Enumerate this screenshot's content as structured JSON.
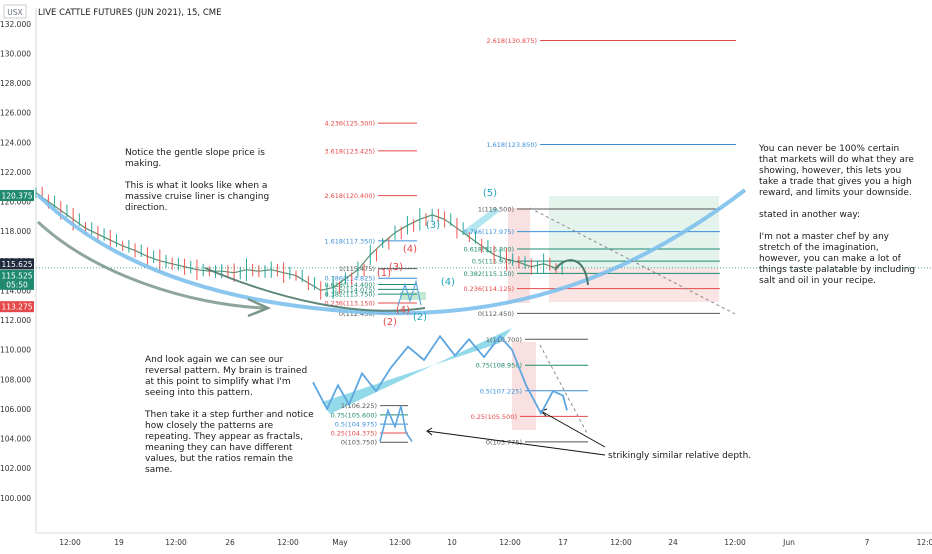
{
  "header": {
    "currency": "USX",
    "title": "LIVE CATTLE FUTURES (JUN 2021), 15, CME"
  },
  "chart_data": {
    "type": "line",
    "title": "LIVE CATTLE FUTURES (JUN 2021), 15, CME",
    "ylim": [
      98.5,
      132.8
    ],
    "y_ticks": [
      "132.000",
      "130.000",
      "128.000",
      "126.000",
      "124.000",
      "122.000",
      "120.000",
      "118.000",
      "116.000",
      "114.000",
      "112.000",
      "110.000",
      "108.000",
      "106.000",
      "104.000",
      "102.000",
      "100.000"
    ],
    "x_ticks": [
      "12:00",
      "19",
      "12:00",
      "26",
      "12:00",
      "May",
      "12:00",
      "10",
      "12:00",
      "17",
      "12:00",
      "24",
      "12:00",
      "Jun",
      "7",
      "12:0"
    ],
    "price_labels": [
      {
        "text": "120.375",
        "value": 120.375,
        "color": "#1f8a70"
      },
      {
        "text": "115.625",
        "value": 115.625,
        "color": "#1f2a3c"
      },
      {
        "text": "115.525",
        "value": 115.525,
        "color": "#1f8a70"
      },
      {
        "text": "05:50",
        "value": 115.525,
        "color": "#1f8a70"
      },
      {
        "text": "113.275",
        "value": 113.275,
        "color": "#e54848"
      }
    ],
    "price_series": [
      120.6,
      120.0,
      119.4,
      118.8,
      118.2,
      117.8,
      117.4,
      117.0,
      116.7,
      116.3,
      116.0,
      115.8,
      115.6,
      115.4,
      115.3,
      115.3,
      115.2,
      115.4,
      115.3,
      115.4,
      115.2,
      115.0,
      114.5,
      114.0,
      114.2,
      114.8,
      115.4,
      116.4,
      117.2,
      117.9,
      118.4,
      118.8,
      119.1,
      118.8,
      118.2,
      117.6,
      117.0,
      116.4,
      116.1,
      115.9,
      115.6,
      115.8,
      115.5
    ],
    "fib_levels": [
      {
        "label": "2.618(130.875)",
        "value": 130.875,
        "color": "#e54848"
      },
      {
        "label": "4.236(125.300)",
        "value": 125.3,
        "color": "#e54848"
      },
      {
        "label": "3.618(123.425)",
        "value": 123.425,
        "color": "#e54848"
      },
      {
        "label": "1.618(123.850)",
        "value": 123.85,
        "color": "#3b8fd9"
      },
      {
        "label": "2.618(120.400)",
        "value": 120.4,
        "color": "#e54848"
      },
      {
        "label": "1(119.500)",
        "value": 119.5,
        "color": "#555555"
      },
      {
        "label": "0.786(117.975)",
        "value": 117.975,
        "color": "#3b8fd9"
      },
      {
        "label": "1.618(117.350)",
        "value": 117.35,
        "color": "#3b8fd9"
      },
      {
        "label": "0.618(116.800)",
        "value": 116.8,
        "color": "#1f8a70"
      },
      {
        "label": "0.5(115.975)",
        "value": 115.975,
        "color": "#1f8a70"
      },
      {
        "label": "1(115.475)",
        "value": 115.475,
        "color": "#555555"
      },
      {
        "label": "0.382(115.150)",
        "value": 115.15,
        "color": "#1f8a70"
      },
      {
        "label": "0.786(114.825)",
        "value": 114.825,
        "color": "#3b8fd9"
      },
      {
        "label": "0.618(114.400)",
        "value": 114.4,
        "color": "#1f8a70"
      },
      {
        "label": "0.5(114.075)",
        "value": 114.075,
        "color": "#1f8a70"
      },
      {
        "label": "0.236(114.125)",
        "value": 114.125,
        "color": "#e54848"
      },
      {
        "label": "0.382(113.750)",
        "value": 113.75,
        "color": "#1f8a70"
      },
      {
        "label": "0.236(113.150)",
        "value": 113.15,
        "color": "#e54848"
      },
      {
        "label": "0(112.450)",
        "value": 112.45,
        "color": "#555555"
      },
      {
        "label": "0(112.450)",
        "value": 112.45,
        "color": "#555555"
      },
      {
        "label": "1(110.700)",
        "value": 110.7,
        "color": "#555555"
      },
      {
        "label": "0.75(108.950)",
        "value": 108.95,
        "color": "#1f8a70"
      },
      {
        "label": "0.5(107.225)",
        "value": 107.225,
        "color": "#3b8fd9"
      },
      {
        "label": "1(106.225)",
        "value": 106.225,
        "color": "#555555"
      },
      {
        "label": "0.75(105.600)",
        "value": 105.6,
        "color": "#1f8a70"
      },
      {
        "label": "0.25(105.500)",
        "value": 105.5,
        "color": "#e54848"
      },
      {
        "label": "0.5(104.975)",
        "value": 104.975,
        "color": "#3b8fd9"
      },
      {
        "label": "0.25(104.375)",
        "value": 104.375,
        "color": "#e54848"
      },
      {
        "label": "0(103.775)",
        "value": 103.775,
        "color": "#555555"
      },
      {
        "label": "0(103.750)",
        "value": 103.75,
        "color": "#555555"
      }
    ],
    "wave_labels": [
      {
        "text": "(5)",
        "color": "#1fa3b8"
      },
      {
        "text": "(3)",
        "color": "#1fa3b8"
      },
      {
        "text": "(4)",
        "color": "#1fa3b8"
      },
      {
        "text": "(3)",
        "color": "#e54848"
      },
      {
        "text": "(4)",
        "color": "#e54848"
      },
      {
        "text": "(1)",
        "color": "#e54848"
      },
      {
        "text": "(4)",
        "color": "#e54848"
      },
      {
        "text": "(2)",
        "color": "#e54848"
      },
      {
        "text": "(2)",
        "color": "#1fa3b8"
      }
    ],
    "fractal_large": [
      106.0,
      107.8,
      106.3,
      108.6,
      107.2,
      109.0,
      110.7,
      109.3,
      110.9,
      109.5,
      105.8,
      107.2,
      106.8,
      107.1,
      105.9
    ],
    "fractal_small": [
      103.8,
      105.9,
      104.8,
      106.2,
      104.4,
      103.8
    ]
  },
  "annotations": {
    "top_left": "Notice the gentle slope price is making.\n\nThis is what it looks like when a massive cruise liner is changing direction.",
    "right": "You can never be 100% certain that markets will do what they are showing, however, this lets you take a trade that gives you a high reward, and limits your downside.\n\nstated in another way:\n\nI'm not a master chef by any stretch of the imagination, however, you can make a lot of things taste palatable by including salt and oil in your recipe.",
    "bottom_left": "And look again we can see our reversal pattern. My brain is trained at this point to simplify what I'm seeing into this pattern.\n\nThen take it a step further and notice how closely the patterns are repeating. They appear as fractals, meaning they can have different values, but the ratios remain the same.",
    "bottom_right": "strikingly similar relative depth."
  }
}
